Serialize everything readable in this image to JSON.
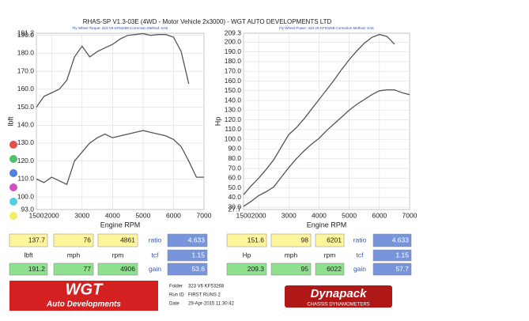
{
  "title": "RHAS-SP V1.3-03E  (4WD - Motor Vehicle 2x3000) - WGT AUTO DEVELOPMENTS LTD",
  "chart_data": [
    {
      "type": "line",
      "subtitle": "Fly Wheel Torque: 323 V6 KF53268     Correction Method: SAE",
      "x_label": "Engine RPM",
      "y_label": "lbft",
      "x": [
        1500,
        1750,
        2000,
        2250,
        2500,
        2750,
        3000,
        3250,
        3500,
        3750,
        4000,
        4250,
        4500,
        4750,
        5000,
        5250,
        5500,
        5750,
        6000,
        6250,
        6500,
        6750,
        7000
      ],
      "series": [
        {
          "color": "#555555",
          "values": [
            150,
            156,
            158,
            160,
            165,
            178,
            184,
            178,
            181,
            183,
            185,
            188,
            190,
            190.5,
            191,
            190,
            190.5,
            190.5,
            189,
            181,
            163,
            null,
            null
          ]
        },
        {
          "color": "#555555",
          "values": [
            110,
            108,
            111,
            109,
            107,
            120,
            125,
            130,
            133,
            135,
            133,
            134,
            135,
            136,
            137,
            136,
            135,
            134,
            132,
            128,
            120,
            111,
            111
          ]
        }
      ],
      "xlim": [
        1500,
        7000
      ],
      "xticks": [
        1500,
        2000,
        3000,
        4000,
        5000,
        6000,
        7000
      ],
      "ylim": [
        93,
        191.2
      ],
      "yticks": [
        {
          "value": 93,
          "label": "93.0"
        },
        {
          "value": 100,
          "label": "100.0"
        },
        {
          "value": 110,
          "label": "110.0"
        },
        {
          "value": 120,
          "label": "120.0"
        },
        {
          "value": 130,
          "label": "130.0"
        },
        {
          "value": 140,
          "label": "140.0"
        },
        {
          "value": 150,
          "label": "150.0"
        },
        {
          "value": 160,
          "label": "160.0"
        },
        {
          "value": 170,
          "label": "170.0"
        },
        {
          "value": 180,
          "label": "180.0"
        },
        {
          "value": 190,
          "label": "190.0"
        },
        191.2
      ],
      "grid": true
    },
    {
      "type": "line",
      "subtitle": "Fly Wheel Power: 323 V6 KF53268     Correction Method: SAE",
      "x_label": "Engine RPM",
      "y_label": "Hp",
      "x": [
        1500,
        1750,
        2000,
        2250,
        2500,
        2750,
        3000,
        3250,
        3500,
        3750,
        4000,
        4250,
        4500,
        4750,
        5000,
        5250,
        5500,
        5750,
        6000,
        6250,
        6500,
        6750,
        7000
      ],
      "series": [
        {
          "color": "#555555",
          "values": [
            43,
            52,
            60,
            69,
            79,
            92,
            105,
            112,
            121,
            131,
            141,
            151,
            161,
            172,
            182,
            191,
            199,
            205,
            208,
            206,
            198,
            null,
            null
          ]
        },
        {
          "color": "#555555",
          "values": [
            31,
            36,
            42,
            46,
            51,
            61,
            71,
            80,
            88,
            95,
            101,
            109,
            116,
            123,
            130,
            136,
            141,
            146,
            150,
            151,
            151,
            148,
            146
          ]
        }
      ],
      "xlim": [
        1500,
        7000
      ],
      "xticks": [
        1500,
        2000,
        3000,
        4000,
        5000,
        6000,
        7000
      ],
      "ylim": [
        27.7,
        209.3
      ],
      "yticks": [
        27.7,
        {
          "value": 30,
          "label": "30.0"
        },
        {
          "value": 40,
          "label": "40.0"
        },
        {
          "value": 50,
          "label": "50.0"
        },
        {
          "value": 60,
          "label": "60.0"
        },
        {
          "value": 70,
          "label": "70.0"
        },
        {
          "value": 80,
          "label": "80.0"
        },
        {
          "value": 90,
          "label": "90.0"
        },
        {
          "value": 100,
          "label": "100.0"
        },
        {
          "value": 110,
          "label": "110.0"
        },
        {
          "value": 120,
          "label": "120.0"
        },
        {
          "value": 130,
          "label": "130.0"
        },
        {
          "value": 140,
          "label": "140.0"
        },
        {
          "value": 150,
          "label": "150.0"
        },
        {
          "value": 160,
          "label": "160.0"
        },
        {
          "value": 170,
          "label": "170.0"
        },
        {
          "value": 180,
          "label": "180.0"
        },
        {
          "value": 190,
          "label": "190.0"
        },
        {
          "value": 200,
          "label": "200.0"
        },
        209.3
      ],
      "grid": true
    }
  ],
  "readouts": [
    {
      "row1": [
        137.7,
        76,
        4861
      ],
      "units": [
        "lbft",
        "mph",
        "rpm"
      ],
      "row2": [
        191.2,
        77,
        4906
      ],
      "labels": [
        "ratio",
        "tcf",
        "gain"
      ],
      "factors": [
        4.633,
        1.15,
        53.6
      ]
    },
    {
      "row1": [
        151.6,
        98,
        6201
      ],
      "units": [
        "Hp",
        "mph",
        "rpm"
      ],
      "row2": [
        209.3,
        95,
        6022
      ],
      "labels": [
        "ratio",
        "tcf",
        "gain"
      ],
      "factors": [
        4.633,
        1.15,
        57.7
      ]
    }
  ],
  "footer": {
    "logo": "WGT",
    "logo_sub": "Auto Developments",
    "folder_label": "Folder",
    "folder": "323 V6 KF53268",
    "run_label": "Run ID",
    "run": "FIRST RUNS 2",
    "date_label": "Date",
    "date": "29-Apr-2015 11:30:42",
    "brand": "Dynapack",
    "brand_sub": "CHASSIS DYNAMOMETERS"
  }
}
